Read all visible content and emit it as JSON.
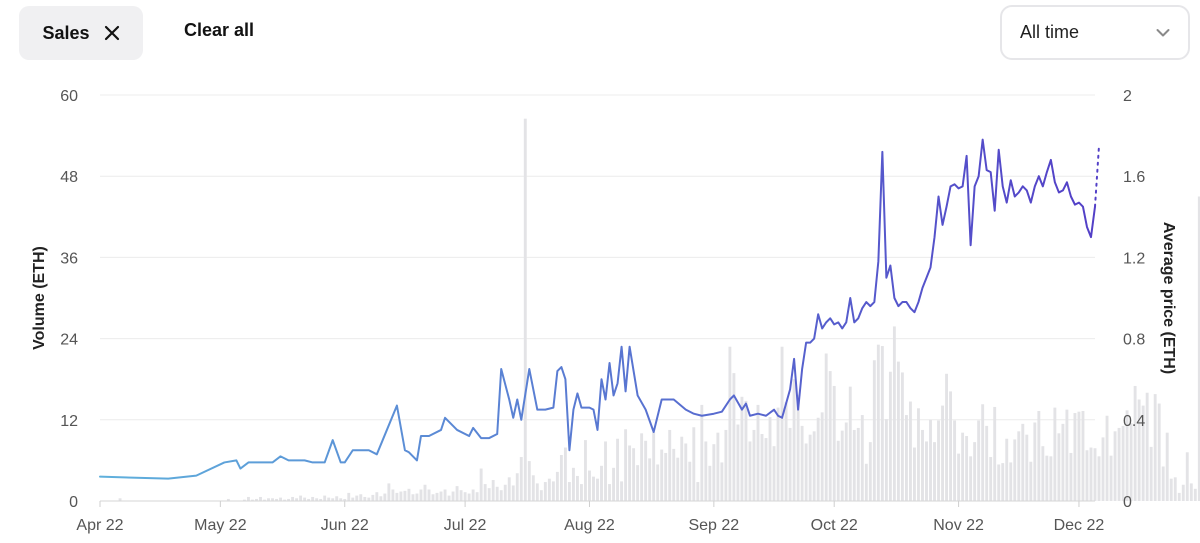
{
  "filters": {
    "chip_label": "Sales",
    "clear_all_label": "Clear all",
    "range_select": {
      "value": "All time"
    }
  },
  "colors": {
    "line_start": "#5fb0dc",
    "line_end": "#5340c7",
    "bars": "#e3e3e6",
    "grid": "#ececec"
  },
  "chart_data": {
    "type": "line",
    "title": "",
    "x_ticks": [
      "Apr 22",
      "May 22",
      "Jun 22",
      "Jul 22",
      "Aug 22",
      "Sep 22",
      "Oct 22",
      "Nov 22",
      "Dec 22"
    ],
    "x_range": [
      "2022-04-01",
      "2022-12-05"
    ],
    "y_left": {
      "label": "Volume (ETH)",
      "range": [
        0,
        60
      ],
      "ticks": [
        0,
        12,
        24,
        36,
        48,
        60
      ]
    },
    "y_right": {
      "label": "Average price (ETH)",
      "range": [
        0,
        2
      ],
      "ticks": [
        "0",
        "0.4",
        "0.8",
        "1.2",
        "1.6",
        "2"
      ]
    },
    "grid": true,
    "series": [
      {
        "type": "line",
        "axis": "right",
        "points": [
          [
            "2022-04-01",
            0.12
          ],
          [
            "2022-04-18",
            0.11
          ],
          [
            "2022-04-25",
            0.125
          ],
          [
            "2022-05-02",
            0.19
          ],
          [
            "2022-05-05",
            0.2
          ],
          [
            "2022-05-06",
            0.16
          ],
          [
            "2022-05-08",
            0.19
          ],
          [
            "2022-05-14",
            0.19
          ],
          [
            "2022-05-16",
            0.22
          ],
          [
            "2022-05-18",
            0.2
          ],
          [
            "2022-05-22",
            0.2
          ],
          [
            "2022-05-24",
            0.19
          ],
          [
            "2022-05-27",
            0.19
          ],
          [
            "2022-05-29",
            0.3
          ],
          [
            "2022-05-31",
            0.19
          ],
          [
            "2022-06-01",
            0.19
          ],
          [
            "2022-06-03",
            0.25
          ],
          [
            "2022-06-07",
            0.25
          ],
          [
            "2022-06-09",
            0.23
          ],
          [
            "2022-06-14",
            0.47
          ],
          [
            "2022-06-16",
            0.25
          ],
          [
            "2022-06-17",
            0.24
          ],
          [
            "2022-06-19",
            0.2
          ],
          [
            "2022-06-20",
            0.32
          ],
          [
            "2022-06-22",
            0.32
          ],
          [
            "2022-06-25",
            0.35
          ],
          [
            "2022-06-26",
            0.41
          ],
          [
            "2022-06-29",
            0.35
          ],
          [
            "2022-07-02",
            0.32
          ],
          [
            "2022-07-03",
            0.36
          ],
          [
            "2022-07-05",
            0.31
          ],
          [
            "2022-07-07",
            0.31
          ],
          [
            "2022-07-09",
            0.33
          ],
          [
            "2022-07-10",
            0.65
          ],
          [
            "2022-07-12",
            0.5
          ],
          [
            "2022-07-13",
            0.41
          ],
          [
            "2022-07-14",
            0.5
          ],
          [
            "2022-07-15",
            0.4
          ],
          [
            "2022-07-17",
            0.65
          ],
          [
            "2022-07-19",
            0.45
          ],
          [
            "2022-07-21",
            0.45
          ],
          [
            "2022-07-23",
            0.46
          ],
          [
            "2022-07-24",
            0.64
          ],
          [
            "2022-07-25",
            0.66
          ],
          [
            "2022-07-26",
            0.6
          ],
          [
            "2022-07-27",
            0.25
          ],
          [
            "2022-07-28",
            0.45
          ],
          [
            "2022-07-29",
            0.53
          ],
          [
            "2022-07-30",
            0.46
          ],
          [
            "2022-08-01",
            0.46
          ],
          [
            "2022-08-02",
            0.45
          ],
          [
            "2022-08-03",
            0.35
          ],
          [
            "2022-08-04",
            0.6
          ],
          [
            "2022-08-05",
            0.5
          ],
          [
            "2022-08-06",
            0.68
          ],
          [
            "2022-08-07",
            0.52
          ],
          [
            "2022-08-08",
            0.58
          ],
          [
            "2022-08-09",
            0.76
          ],
          [
            "2022-08-10",
            0.54
          ],
          [
            "2022-08-11",
            0.76
          ],
          [
            "2022-08-13",
            0.52
          ],
          [
            "2022-08-15",
            0.45
          ],
          [
            "2022-08-17",
            0.34
          ],
          [
            "2022-08-19",
            0.5
          ],
          [
            "2022-08-22",
            0.5
          ],
          [
            "2022-08-25",
            0.45
          ],
          [
            "2022-08-27",
            0.43
          ],
          [
            "2022-08-29",
            0.42
          ],
          [
            "2022-09-01",
            0.43
          ],
          [
            "2022-09-03",
            0.44
          ],
          [
            "2022-09-05",
            0.5
          ],
          [
            "2022-09-06",
            0.52
          ],
          [
            "2022-09-08",
            0.45
          ],
          [
            "2022-09-09",
            0.48
          ],
          [
            "2022-09-10",
            0.42
          ],
          [
            "2022-09-12",
            0.43
          ],
          [
            "2022-09-14",
            0.42
          ],
          [
            "2022-09-16",
            0.45
          ],
          [
            "2022-09-17",
            0.42
          ],
          [
            "2022-09-18",
            0.41
          ],
          [
            "2022-09-20",
            0.55
          ],
          [
            "2022-09-21",
            0.7
          ],
          [
            "2022-09-22",
            0.45
          ],
          [
            "2022-09-23",
            0.65
          ],
          [
            "2022-09-24",
            0.78
          ],
          [
            "2022-09-25",
            0.78
          ],
          [
            "2022-09-26",
            0.8
          ],
          [
            "2022-09-27",
            0.92
          ],
          [
            "2022-09-28",
            0.85
          ],
          [
            "2022-09-29",
            0.88
          ],
          [
            "2022-09-30",
            0.9
          ],
          [
            "2022-10-01",
            0.87
          ],
          [
            "2022-10-02",
            0.88
          ],
          [
            "2022-10-03",
            0.85
          ],
          [
            "2022-10-04",
            0.88
          ],
          [
            "2022-10-05",
            1.0
          ],
          [
            "2022-10-06",
            0.88
          ],
          [
            "2022-10-07",
            0.9
          ],
          [
            "2022-10-08",
            0.95
          ],
          [
            "2022-10-09",
            0.98
          ],
          [
            "2022-10-10",
            0.96
          ],
          [
            "2022-10-11",
            0.98
          ],
          [
            "2022-10-12",
            1.18
          ],
          [
            "2022-10-13",
            1.72
          ],
          [
            "2022-10-14",
            1.1
          ],
          [
            "2022-10-15",
            1.16
          ],
          [
            "2022-10-16",
            1.0
          ],
          [
            "2022-10-17",
            0.96
          ],
          [
            "2022-10-18",
            0.98
          ],
          [
            "2022-10-19",
            0.98
          ],
          [
            "2022-10-20",
            0.95
          ],
          [
            "2022-10-21",
            0.93
          ],
          [
            "2022-10-22",
            0.98
          ],
          [
            "2022-10-23",
            1.05
          ],
          [
            "2022-10-24",
            1.1
          ],
          [
            "2022-10-25",
            1.15
          ],
          [
            "2022-10-26",
            1.3
          ],
          [
            "2022-10-27",
            1.5
          ],
          [
            "2022-10-28",
            1.36
          ],
          [
            "2022-10-29",
            1.45
          ],
          [
            "2022-10-30",
            1.55
          ],
          [
            "2022-10-31",
            1.56
          ],
          [
            "2022-11-01",
            1.54
          ],
          [
            "2022-11-02",
            1.55
          ],
          [
            "2022-11-03",
            1.7
          ],
          [
            "2022-11-04",
            1.26
          ],
          [
            "2022-11-05",
            1.55
          ],
          [
            "2022-11-06",
            1.6
          ],
          [
            "2022-11-07",
            1.78
          ],
          [
            "2022-11-08",
            1.63
          ],
          [
            "2022-11-09",
            1.62
          ],
          [
            "2022-11-10",
            1.43
          ],
          [
            "2022-11-11",
            1.73
          ],
          [
            "2022-11-12",
            1.55
          ],
          [
            "2022-11-13",
            1.47
          ],
          [
            "2022-11-14",
            1.58
          ],
          [
            "2022-11-15",
            1.5
          ],
          [
            "2022-11-16",
            1.52
          ],
          [
            "2022-11-17",
            1.55
          ],
          [
            "2022-11-18",
            1.53
          ],
          [
            "2022-11-19",
            1.47
          ],
          [
            "2022-11-20",
            1.55
          ],
          [
            "2022-11-21",
            1.6
          ],
          [
            "2022-11-22",
            1.55
          ],
          [
            "2022-11-23",
            1.62
          ],
          [
            "2022-11-24",
            1.68
          ],
          [
            "2022-11-25",
            1.57
          ],
          [
            "2022-11-26",
            1.52
          ],
          [
            "2022-11-27",
            1.53
          ],
          [
            "2022-11-28",
            1.57
          ],
          [
            "2022-11-29",
            1.5
          ],
          [
            "2022-11-30",
            1.46
          ],
          [
            "2022-12-01",
            1.47
          ],
          [
            "2022-12-02",
            1.45
          ],
          [
            "2022-12-03",
            1.35
          ],
          [
            "2022-12-04",
            1.3
          ],
          [
            "2022-12-05",
            1.45
          ]
        ]
      },
      {
        "type": "bar",
        "axis": "left",
        "values": [
          0,
          0,
          0,
          0,
          0,
          0.4,
          0,
          0,
          0,
          0,
          0,
          0,
          0,
          0,
          0,
          0,
          0,
          0,
          0,
          0,
          0,
          0,
          0,
          0,
          0,
          0,
          0,
          0,
          0,
          0,
          0,
          0,
          0.3,
          0,
          0,
          0,
          0.2,
          0.6,
          0.2,
          0.3,
          0.6,
          0.2,
          0.4,
          0.4,
          0.3,
          0.5,
          0.2,
          0.3,
          0.6,
          0.4,
          0.8,
          0.5,
          0.3,
          0.6,
          0.4,
          0.3,
          0.8,
          0.5,
          0.4,
          0.7,
          0.4,
          0.3,
          1.2,
          0.5,
          0.8,
          1.0,
          0.6,
          0.5,
          0.9,
          1.3,
          0.7,
          1.1,
          2.6,
          1.7,
          1.2,
          1.4,
          1.5,
          1.8,
          1.0,
          1.1,
          1.7,
          2.4,
          1.7,
          1.0,
          1.2,
          1.4,
          1.7,
          0.8,
          1.4,
          2.2,
          1.6,
          1.3,
          1.1,
          1.7,
          1.3,
          4.8,
          2.5,
          1.9,
          3.1,
          2.1,
          1.6,
          2.4,
          3.5,
          2.3,
          4.1,
          6.5,
          56.5,
          5.9,
          3.8,
          2.6,
          1.6,
          2.8,
          3.3,
          2.9,
          4.3,
          6.8,
          7.9,
          2.8,
          4.9,
          3.7,
          2.5,
          9.0,
          4.5,
          3.6,
          3.3,
          5.2,
          8.8,
          2.5,
          4.9,
          9.2,
          2.9,
          10.6,
          8.2,
          7.8,
          5.3,
          10.0,
          8.9,
          6.3,
          10.2,
          5.4,
          7.6,
          7.1,
          10.5,
          7.7,
          6.4,
          9.5,
          8.5,
          5.8,
          10.9,
          2.8,
          14.2,
          8.8,
          5.2,
          8.4,
          10.1,
          5.7,
          10.5,
          22.8,
          18.9,
          11.3,
          15.4,
          14.8,
          8.8,
          10.5,
          14.2,
          9.9,
          9.3,
          12.4,
          8.1,
          13.8,
          22.8,
          14.6,
          10.8,
          18.0,
          15.7,
          11.1,
          8.5,
          9.8,
          10.3,
          12.3,
          13.1,
          21.8,
          19.2,
          17.0,
          8.9,
          10.4,
          11.6,
          16.9,
          10.5,
          10.8,
          12.7,
          5.5,
          8.7,
          20.8,
          23.1,
          22.9,
          12.1,
          19.1,
          25.8,
          20.6,
          19.0,
          12.7,
          14.7,
          7.9,
          13.7,
          10.5,
          8.8,
          12.0,
          8.7,
          11.9,
          14.1,
          18.8,
          16.2,
          11.9,
          7.0,
          10.1,
          9.6,
          6.6,
          8.7,
          11.9,
          14.3,
          11.1,
          6.5,
          13.9,
          5.4,
          5.6,
          9.2,
          5.7,
          9.1,
          10.3,
          11.4,
          9.8,
          5.8,
          11.6,
          13.3,
          8.1,
          6.7,
          6.6,
          13.8,
          10.0,
          11.4,
          13.5,
          7.1,
          13.0,
          13.2,
          13.3,
          7.5,
          7.9,
          7.8,
          6.6,
          9.4,
          12.6,
          6.7,
          10.3,
          10.8,
          11.1,
          13.4,
          11.5,
          17.0,
          15.0,
          14.1,
          16.0,
          8.0,
          15.8,
          14.4,
          5.1,
          10.1,
          3.3,
          3.5,
          1.2,
          2.4,
          7.2,
          2.6,
          1.8,
          45.0,
          1.5
        ]
      }
    ]
  }
}
